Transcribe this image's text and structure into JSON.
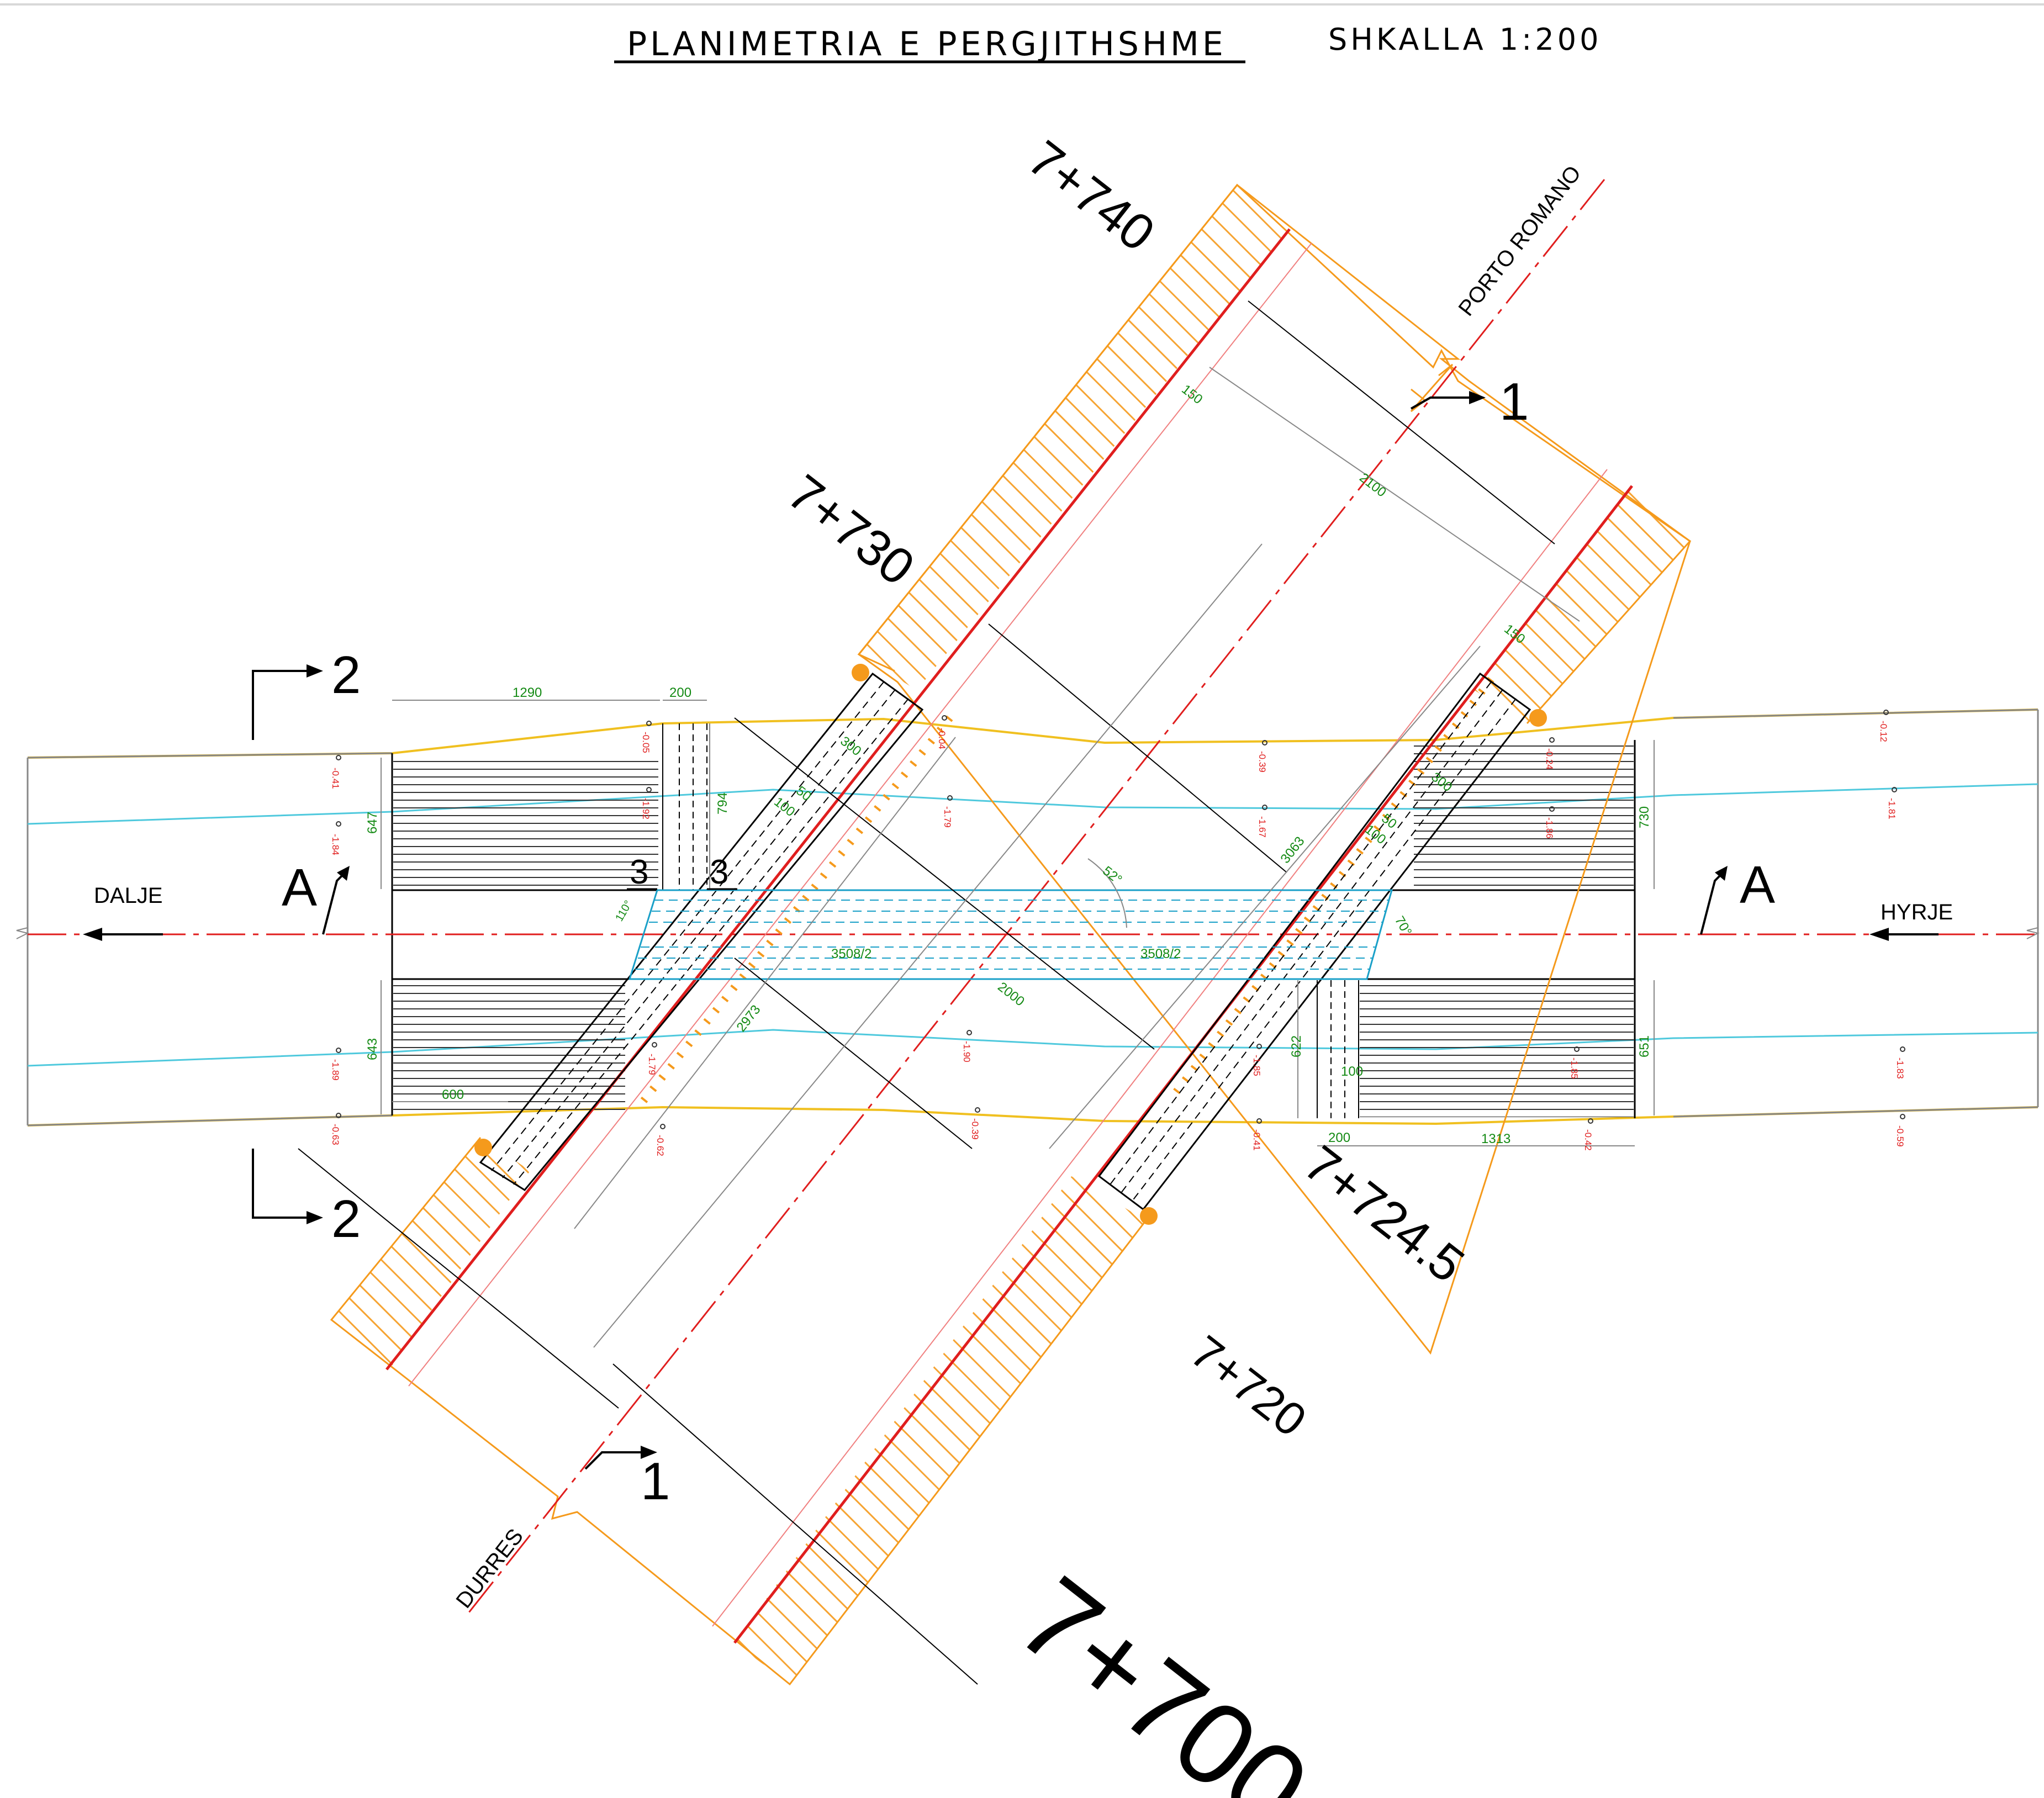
{
  "title": "PLANIMETRIA E PERGJITHSHME",
  "scale": "SHKALLA 1:200",
  "stations": {
    "s740": "7+740",
    "s730": "7+730",
    "s7245": "7+724.5",
    "s720": "7+720",
    "s700": "7+700"
  },
  "directions": {
    "porto_romano": "PORTO ROMANO",
    "durres": "DURRES",
    "dalje": "DALJE",
    "hyrje": "HYRJE"
  },
  "sections": {
    "s1": "1",
    "s2": "2",
    "sA": "A",
    "s3": "3"
  },
  "dimensions": {
    "d150a": "150",
    "d150b": "150",
    "d2100": "2100",
    "d1290": "1290",
    "d200a": "200",
    "d200b": "200",
    "d647": "647",
    "d794": "794",
    "d730": "730",
    "d643": "643",
    "d600": "600",
    "d622": "622",
    "d100": "100",
    "d1313": "1313",
    "d651": "651",
    "d3063": "3063",
    "d2973": "2973",
    "d2000": "2000",
    "d3508a": "3508/2",
    "d3508b": "3508/2",
    "a52": "52°",
    "a70": "70°",
    "a110": "110°",
    "d300a": "300",
    "d300b": "300",
    "d50a": "50",
    "d50b": "50",
    "d100a": "100",
    "d100b": "100"
  },
  "levels": {
    "l1": "-0.41",
    "l2": "-0.05",
    "l3": "-0.04",
    "l4": "-0.39",
    "l5": "-0.24",
    "l6": "-0.12",
    "l7": "-1.84",
    "l8": "-1.92",
    "l9": "-1.79",
    "l10": "-1.67",
    "l11": "-1.86",
    "l12": "-1.81",
    "l13": "-1.89",
    "l14": "-1.79",
    "l15": "-1.90",
    "l16": "-1.85",
    "l17": "-1.85",
    "l18": "-1.83",
    "l19": "-0.63",
    "l20": "-0.62",
    "l21": "-0.39",
    "l22": "-0.41",
    "l23": "-0.42",
    "l24": "-0.59"
  },
  "colors": {
    "edge": "#f59a1c",
    "axis": "#e01e1e",
    "water": "#4fc9dd",
    "bank": "#f0c020",
    "culvert": "#1aa0c8",
    "dim": "#148a14"
  }
}
